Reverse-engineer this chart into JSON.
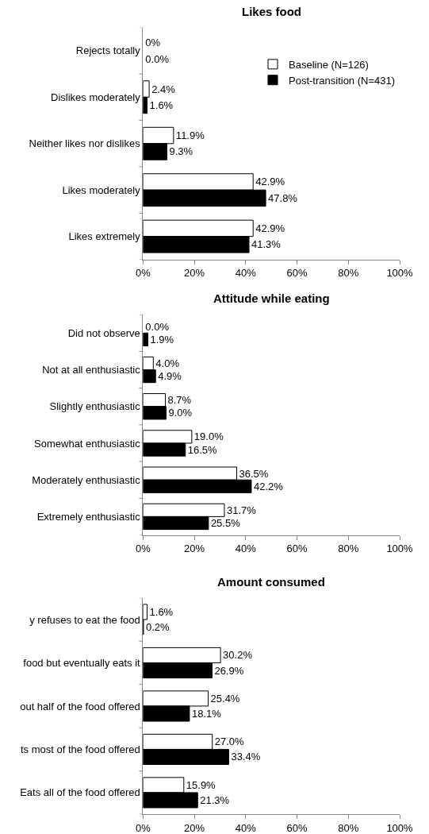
{
  "chart_data": [
    {
      "type": "bar",
      "orientation": "horizontal",
      "title": "Likes food",
      "categories": [
        "Rejects totally",
        "Dislikes moderately",
        "Neither likes nor dislikes",
        "Likes moderately",
        "Likes extremely"
      ],
      "series": [
        {
          "name": "Baseline (N=126)",
          "color": "#ffffff",
          "values": [
            0,
            2.4,
            11.9,
            42.9,
            42.9
          ],
          "value_labels": [
            "0%",
            "2.4%",
            "11.9%",
            "42.9%",
            "42.9%"
          ]
        },
        {
          "name": "Post-transition (N=431)",
          "color": "#000000",
          "values": [
            0,
            1.6,
            9.3,
            47.8,
            41.3
          ],
          "value_labels": [
            "0.0%",
            "1.6%",
            "9.3%",
            "47.8%",
            "41.3%"
          ]
        }
      ],
      "xlim": [
        0,
        100
      ],
      "xticks": [
        {
          "value": 0,
          "label": "0%"
        },
        {
          "value": 20,
          "label": "20%"
        },
        {
          "value": 40,
          "label": "40%"
        },
        {
          "value": 60,
          "label": "60%"
        },
        {
          "value": 80,
          "label": "80%"
        },
        {
          "value": 100,
          "label": "100%"
        }
      ],
      "grid": false,
      "legend": "top right"
    },
    {
      "type": "bar",
      "orientation": "horizontal",
      "title": "Attitude while eating",
      "categories": [
        "Did not observe",
        "Not at all enthusiastic",
        "Slightly enthusiastic",
        "Somewhat enthusiastic",
        "Moderately enthusiastic",
        "Extremely enthusiastic"
      ],
      "series": [
        {
          "color": "#ffffff",
          "values": [
            0,
            4.0,
            8.7,
            19.0,
            36.5,
            31.7
          ],
          "value_labels": [
            "0.0%",
            "4.0%",
            "8.7%",
            "19.0%",
            "36.5%",
            "31.7%"
          ]
        },
        {
          "color": "#000000",
          "values": [
            1.9,
            4.9,
            9.0,
            16.5,
            42.2,
            25.5
          ],
          "value_labels": [
            "1.9%",
            "4.9%",
            "9.0%",
            "16.5%",
            "42.2%",
            "25.5%"
          ]
        }
      ],
      "xlim": [
        0,
        100
      ],
      "xticks": [
        {
          "value": 0,
          "label": "0%"
        },
        {
          "value": 20,
          "label": "20%"
        },
        {
          "value": 40,
          "label": "40%"
        },
        {
          "value": 60,
          "label": "60%"
        },
        {
          "value": 80,
          "label": "80%"
        },
        {
          "value": 100,
          "label": "100%"
        }
      ],
      "grid": false,
      "legend": false
    },
    {
      "type": "bar",
      "orientation": "horizontal",
      "title": "Amount consumed",
      "categories": [
        "y refuses to eat the food",
        "food but eventually eats it",
        "out half of the food offered",
        "ts most of the food offered",
        "Eats all of the food offered"
      ],
      "series": [
        {
          "color": "#ffffff",
          "values": [
            1.6,
            30.2,
            25.4,
            27.0,
            15.9
          ],
          "value_labels": [
            "1.6%",
            "30.2%",
            "25.4%",
            "27.0%",
            "15.9%"
          ]
        },
        {
          "color": "#000000",
          "values": [
            0.2,
            26.9,
            18.1,
            33.4,
            21.3
          ],
          "value_labels": [
            "0.2%",
            "26.9%",
            "18.1%",
            "33.4%",
            "21.3%"
          ]
        }
      ],
      "xlim": [
        0,
        100
      ],
      "xticks": [
        {
          "value": 0,
          "label": "0%"
        },
        {
          "value": 20,
          "label": "20%"
        },
        {
          "value": 40,
          "label": "40%"
        },
        {
          "value": 60,
          "label": "60%"
        },
        {
          "value": 80,
          "label": "80%"
        },
        {
          "value": 100,
          "label": "100%"
        }
      ],
      "grid": false,
      "legend": false
    }
  ]
}
